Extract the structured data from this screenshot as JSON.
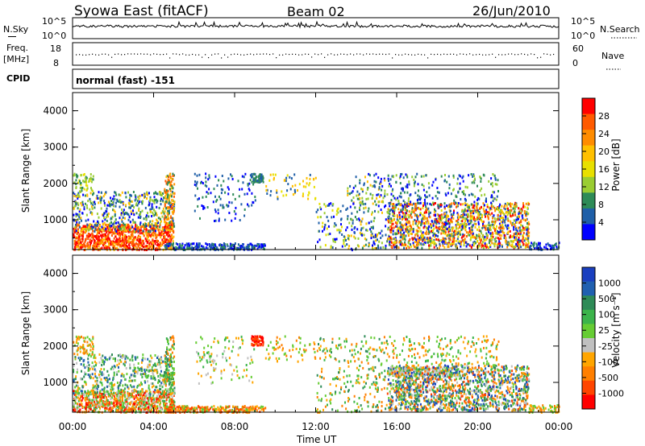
{
  "header": {
    "station": "Syowa East (fitACF)",
    "beam": "Beam 02",
    "date": "26/Jun/2010"
  },
  "top_panels": {
    "nsky_label": "N.Sky",
    "nsky_ticks": [
      "10^5",
      "10^0"
    ],
    "nsearch_label": "N.Search",
    "nsearch_ticks": [
      "10^5",
      "10^0"
    ],
    "freq_label": "Freq.",
    "freq_unit": "[MHz]",
    "freq_ticks": [
      "18",
      "8"
    ],
    "nave_label": "Nave",
    "nave_ticks": [
      "60",
      "0"
    ],
    "cpid_label": "CPID",
    "cpid_value": "normal (fast) -151"
  },
  "chart_data": [
    {
      "type": "heatmap",
      "panel": "power",
      "ylabel": "Slant Range [km]",
      "y_ticks": [
        "4000",
        "3000",
        "2000",
        "1000"
      ],
      "ylim": [
        180,
        4500
      ],
      "x_ticks": [
        "00:00",
        "04:00",
        "08:00",
        "12:00",
        "16:00",
        "20:00",
        "00:00"
      ],
      "colorbar": {
        "label": "Power [dB]",
        "ticks": [
          "28",
          "24",
          "20",
          "16",
          "12",
          "8",
          "4"
        ],
        "colors": [
          "#ff0000",
          "#ff5a00",
          "#ff8c00",
          "#ffc000",
          "#e8e000",
          "#9acd32",
          "#2e8b57",
          "#1f5fa8",
          "#0000ff"
        ]
      }
    },
    {
      "type": "heatmap",
      "panel": "velocity",
      "ylabel": "Slant Range [km]",
      "y_ticks": [
        "4000",
        "3000",
        "2000",
        "1000"
      ],
      "ylim": [
        180,
        4500
      ],
      "x_ticks": [
        "00:00",
        "04:00",
        "08:00",
        "12:00",
        "16:00",
        "20:00",
        "00:00"
      ],
      "xlabel": "Time UT",
      "colorbar": {
        "label": "Velocity [m s⁻¹]",
        "ticks": [
          "1000",
          "500",
          "100",
          "25",
          "-25",
          "-100",
          "-500",
          "-1000"
        ],
        "colors": [
          "#1a3fbf",
          "#2060b0",
          "#2e8b57",
          "#3cb44b",
          "#66cc33",
          "#c0c0c0",
          "#ffa500",
          "#ff7f00",
          "#ff4500",
          "#ff0000"
        ]
      }
    }
  ]
}
